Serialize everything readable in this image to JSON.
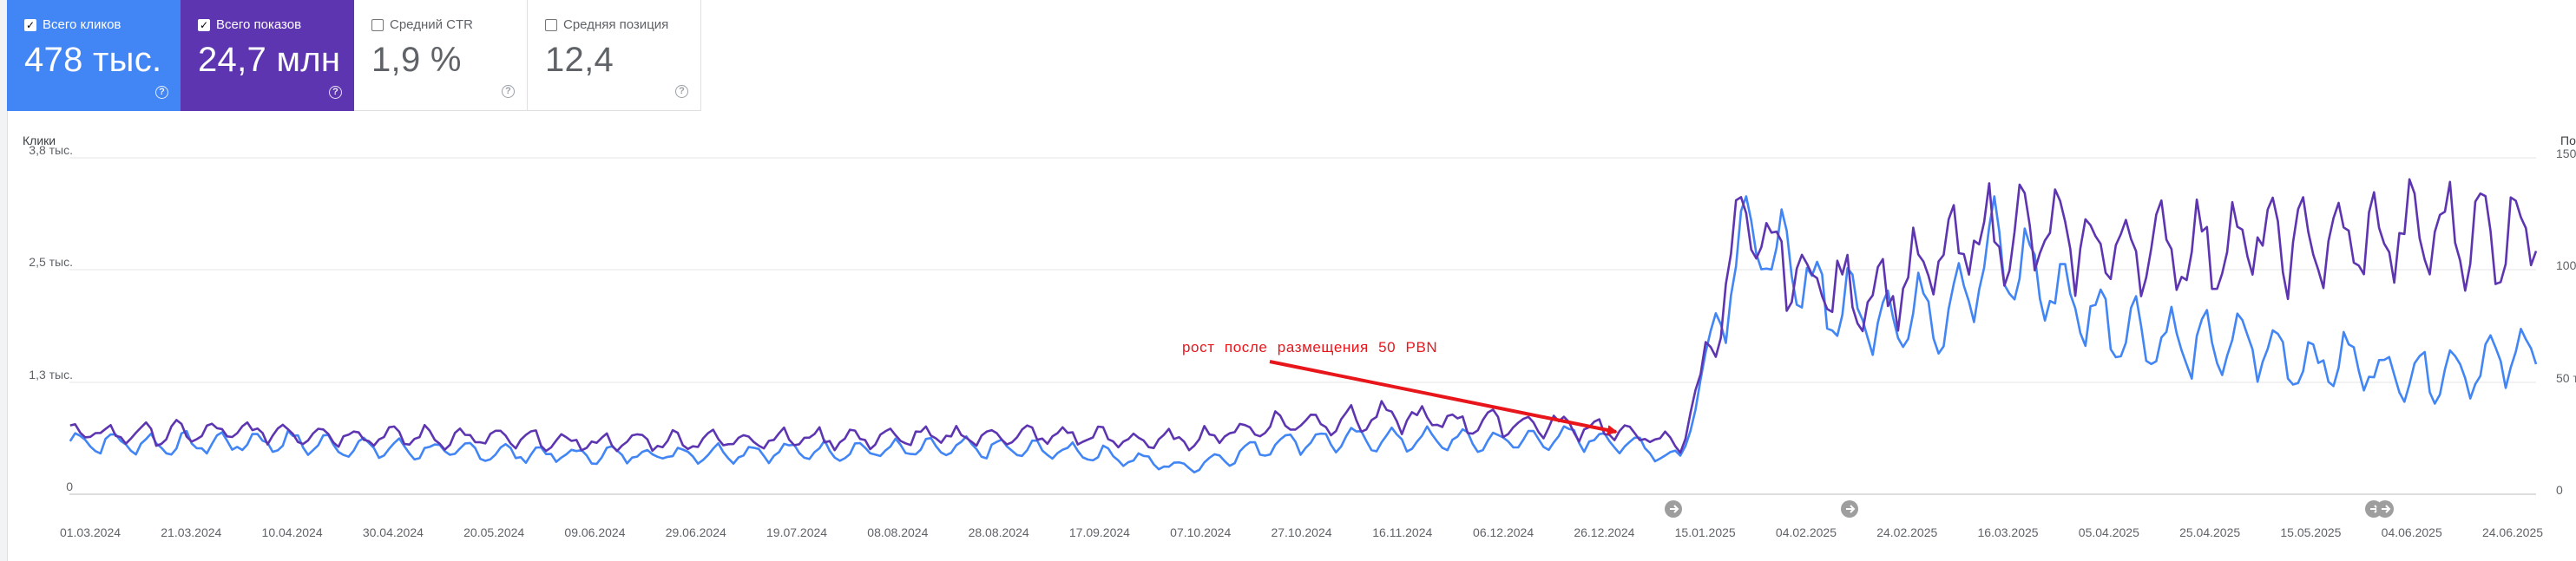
{
  "metrics": [
    {
      "label": "Всего кликов",
      "value": "478 тыс.",
      "selected": true,
      "color": "#4285f4",
      "check": "✓",
      "help": "?"
    },
    {
      "label": "Всего показов",
      "value": "24,7 млн",
      "selected": true,
      "color": "#5e35b1",
      "check": "✓",
      "help": "?"
    },
    {
      "label": "Средний CTR",
      "value": "1,9 %",
      "selected": false,
      "color": "#ffffff",
      "check": "",
      "help": "?"
    },
    {
      "label": "Средняя позиция",
      "value": "12,4",
      "selected": false,
      "color": "#ffffff",
      "check": "",
      "help": "?"
    }
  ],
  "chart": {
    "left_axis_title": "Клики",
    "right_axis_title": "По",
    "left_ticks": [
      "3,8 тыс.",
      "2,5 тыс.",
      "1,3 тыс.",
      "0"
    ],
    "right_ticks": [
      "150",
      "100",
      "50 т",
      "0"
    ],
    "x_labels": [
      "01.03.2024",
      "21.03.2024",
      "10.04.2024",
      "30.04.2024",
      "20.05.2024",
      "09.06.2024",
      "29.06.2024",
      "19.07.2024",
      "08.08.2024",
      "28.08.2024",
      "17.09.2024",
      "07.10.2024",
      "27.10.2024",
      "16.11.2024",
      "06.12.2024",
      "26.12.2024",
      "15.01.2025",
      "04.02.2025",
      "24.02.2025",
      "16.03.2025",
      "05.04.2025",
      "25.04.2025",
      "15.05.2025",
      "04.06.2025",
      "24.06.2025"
    ],
    "annotation_text": "рост после размещения 50 PBN",
    "annotation_color": "#e8151b",
    "marker_icon": "arrow-right-icon"
  },
  "chart_data": {
    "type": "line",
    "x_range": [
      "01.03.2024",
      "30.06.2025"
    ],
    "ylim_left": [
      0,
      3800
    ],
    "ylim_right": [
      0,
      150000
    ],
    "series": [
      {
        "name": "Всего кликов",
        "color": "#4285f4",
        "axis": "left",
        "keypoints": [
          [
            0,
            600
          ],
          [
            20,
            560
          ],
          [
            40,
            600
          ],
          [
            60,
            520
          ],
          [
            80,
            480
          ],
          [
            100,
            440
          ],
          [
            120,
            460
          ],
          [
            140,
            480
          ],
          [
            160,
            500
          ],
          [
            180,
            520
          ],
          [
            200,
            480
          ],
          [
            210,
            400
          ],
          [
            220,
            300
          ],
          [
            240,
            600
          ],
          [
            260,
            620
          ],
          [
            280,
            600
          ],
          [
            300,
            640
          ],
          [
            310,
            540
          ],
          [
            318,
            400
          ],
          [
            322,
            1300
          ],
          [
            326,
            2100
          ],
          [
            330,
            3000
          ],
          [
            340,
            2500
          ],
          [
            350,
            2100
          ],
          [
            360,
            2000
          ],
          [
            370,
            2100
          ],
          [
            380,
            2700
          ],
          [
            390,
            2400
          ],
          [
            400,
            2000
          ],
          [
            410,
            1800
          ],
          [
            420,
            1650
          ],
          [
            430,
            1700
          ],
          [
            440,
            1500
          ],
          [
            450,
            1500
          ],
          [
            460,
            1350
          ],
          [
            470,
            1400
          ],
          [
            480,
            1500
          ],
          [
            487,
            1650
          ]
        ]
      },
      {
        "name": "Всего показов",
        "color": "#5e35b1",
        "axis": "right",
        "keypoints": [
          [
            0,
            27000
          ],
          [
            20,
            27000
          ],
          [
            40,
            28000
          ],
          [
            60,
            26000
          ],
          [
            80,
            25000
          ],
          [
            100,
            23000
          ],
          [
            120,
            24000
          ],
          [
            140,
            25000
          ],
          [
            160,
            25000
          ],
          [
            180,
            26000
          ],
          [
            200,
            26000
          ],
          [
            210,
            24000
          ],
          [
            220,
            24000
          ],
          [
            240,
            32000
          ],
          [
            260,
            34000
          ],
          [
            280,
            32000
          ],
          [
            300,
            30000
          ],
          [
            310,
            26000
          ],
          [
            318,
            22000
          ],
          [
            322,
            50000
          ],
          [
            326,
            85000
          ],
          [
            330,
            118000
          ],
          [
            340,
            100000
          ],
          [
            350,
            90000
          ],
          [
            360,
            92000
          ],
          [
            370,
            105000
          ],
          [
            380,
            118000
          ],
          [
            390,
            115000
          ],
          [
            400,
            110000
          ],
          [
            410,
            110000
          ],
          [
            420,
            110000
          ],
          [
            430,
            112000
          ],
          [
            440,
            112000
          ],
          [
            450,
            112000
          ],
          [
            460,
            115000
          ],
          [
            470,
            118000
          ],
          [
            480,
            115000
          ],
          [
            487,
            125000
          ]
        ]
      }
    ],
    "title": "",
    "xlabel": "",
    "ylabel": "Клики",
    "y2label": "По",
    "grid": true,
    "legend": "none"
  }
}
